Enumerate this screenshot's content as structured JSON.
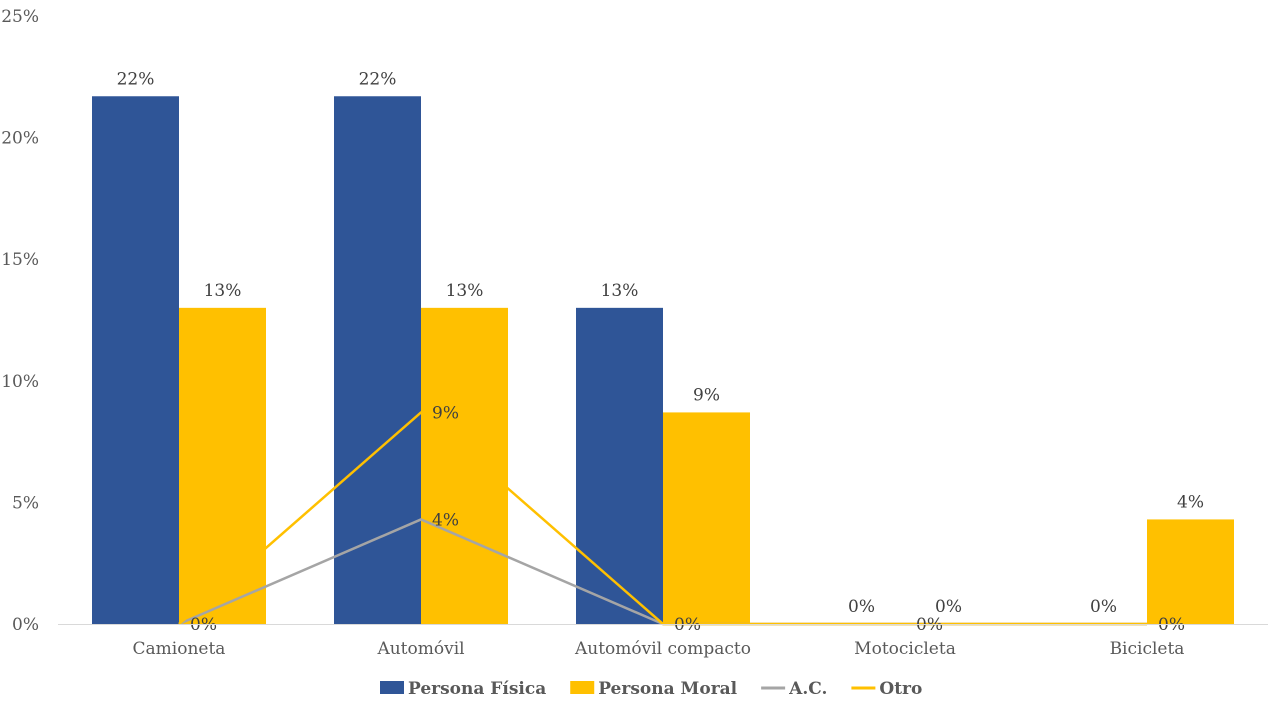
{
  "chart_data": {
    "type": "bar",
    "title": "",
    "xlabel": "",
    "ylabel": "",
    "ylim": [
      0,
      25
    ],
    "yticks": [
      "0%",
      "5%",
      "10%",
      "15%",
      "20%",
      "25%"
    ],
    "ytick_values": [
      0,
      5,
      10,
      15,
      20,
      25
    ],
    "categories": [
      "Camioneta",
      "Automóvil",
      "Automóvil compacto",
      "Motocicleta",
      "Bicicleta"
    ],
    "series": [
      {
        "name": "Persona Física",
        "kind": "bar",
        "color": "#2F5597",
        "values": [
          21.7,
          21.7,
          13.0,
          0,
          0
        ],
        "labels": [
          "22%",
          "22%",
          "13%",
          "0%",
          "0%"
        ]
      },
      {
        "name": "Persona Moral",
        "kind": "bar",
        "color": "#FFC000",
        "values": [
          13.0,
          13.0,
          8.7,
          0,
          4.3
        ],
        "labels": [
          "13%",
          "13%",
          "9%",
          "0%",
          "4%"
        ]
      },
      {
        "name": "A.C.",
        "kind": "line",
        "color": "#A5A5A5",
        "values": [
          0,
          4.3,
          0,
          0,
          0
        ],
        "labels": [
          "0%",
          "4%",
          "0%",
          "0%",
          "0%"
        ]
      },
      {
        "name": "Otro",
        "kind": "line",
        "color": "#FFC000",
        "values": [
          0,
          8.7,
          0,
          0,
          0
        ],
        "labels": [
          "",
          "9%",
          "",
          "",
          ""
        ]
      }
    ],
    "legend_position": "bottom"
  }
}
